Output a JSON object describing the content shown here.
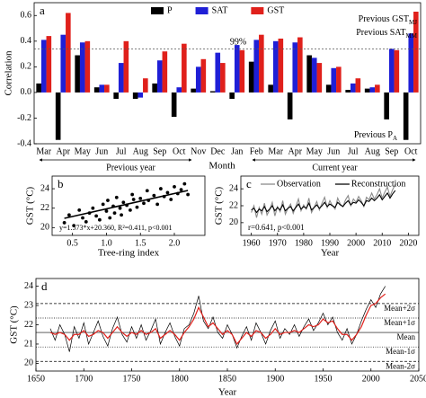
{
  "chart_data": [
    {
      "type": "bar",
      "label": "a",
      "ylabel": "Correlation",
      "xlabel": "Month",
      "categories": [
        "Mar",
        "Apr",
        "May",
        "Jun",
        "Jul",
        "Aug",
        "Sep",
        "Oct",
        "Nov",
        "Dec",
        "Jan",
        "Feb",
        "Mar",
        "Apr",
        "May",
        "Jun",
        "Jul",
        "Aug",
        "Sep",
        "Oct"
      ],
      "groups": [
        "Previous year",
        "Current year"
      ],
      "series": [
        {
          "name": "P",
          "color": "#000000",
          "values": [
            0.07,
            -0.37,
            0.29,
            0.04,
            -0.05,
            -0.05,
            0.07,
            -0.19,
            0.03,
            0.01,
            -0.05,
            0.24,
            0.06,
            -0.21,
            0.29,
            0.06,
            0.02,
            0.03,
            -0.21,
            -0.37
          ]
        },
        {
          "name": "SAT",
          "color": "#1f1fd6",
          "values": [
            0.41,
            0.45,
            0.39,
            0.06,
            0.23,
            -0.04,
            0.25,
            0.04,
            0.2,
            0.31,
            0.37,
            0.41,
            0.4,
            0.39,
            0.27,
            0.19,
            0.07,
            0.04,
            0.34,
            0.46
          ]
        },
        {
          "name": "GST",
          "color": "#e0201b",
          "values": [
            0.44,
            0.62,
            0.4,
            0.06,
            0.4,
            0.11,
            0.32,
            0.38,
            0.26,
            0.23,
            0.33,
            0.45,
            0.42,
            0.43,
            0.23,
            0.2,
            0.11,
            0.06,
            0.33,
            0.63
          ]
        }
      ],
      "ylim": [
        -0.4,
        0.7
      ],
      "yticks": [
        -0.4,
        -0.2,
        {
          "value": 0,
          "label": "0.0"
        },
        0.2,
        0.4,
        0.6
      ],
      "threshold": 0.34,
      "threshold_label": "99%",
      "legend": "top",
      "annotations": [
        {
          "text": "Previous GST",
          "sub": "MJ"
        },
        {
          "text": "Previous SAT",
          "sub": "MM"
        },
        {
          "text": "Previous P",
          "sub": "A"
        }
      ]
    },
    {
      "type": "scatter",
      "label": "b",
      "xlabel": "Tree-ring index",
      "ylabel": "GST (°C)",
      "x": [
        0.38,
        0.45,
        0.52,
        0.6,
        0.65,
        0.7,
        0.75,
        0.8,
        0.85,
        0.9,
        0.95,
        1.0,
        1.02,
        1.05,
        1.1,
        1.12,
        1.15,
        1.2,
        1.22,
        1.25,
        1.3,
        1.35,
        1.38,
        1.4,
        1.45,
        1.5,
        1.55,
        1.6,
        1.62,
        1.7,
        1.75,
        1.8,
        1.85,
        1.9,
        1.95,
        2.0,
        2.05,
        2.1,
        2.15,
        2.2
      ],
      "y": [
        20.5,
        21.3,
        20.2,
        21.8,
        21.0,
        20.6,
        21.5,
        22.0,
        21.2,
        20.8,
        22.4,
        21.7,
        22.8,
        21.0,
        22.2,
        21.5,
        23.1,
        22.0,
        21.3,
        22.6,
        22.3,
        21.8,
        23.4,
        22.9,
        22.1,
        23.0,
        22.5,
        23.8,
        22.8,
        23.3,
        22.4,
        24.0,
        23.2,
        23.6,
        22.9,
        24.2,
        23.5,
        23.9,
        24.5,
        23.4
      ],
      "color": "#000000",
      "xlim": [
        0.2,
        2.45
      ],
      "xticks": [
        0.5,
        {
          "value": 1,
          "label": "1.0"
        },
        1.5,
        {
          "value": 2,
          "label": "2.0"
        }
      ],
      "ylim": [
        19.2,
        25.3
      ],
      "yticks": [
        20,
        22,
        24
      ],
      "fit": {
        "slope": 1.573,
        "intercept": 20.36
      },
      "annotation": "y=1.573*x+20.360, R²=0.411, p<0.001"
    },
    {
      "type": "line",
      "label": "c",
      "xlabel": "Year",
      "ylabel": "GST (°C)",
      "x": [
        1960,
        1961,
        1962,
        1963,
        1964,
        1965,
        1966,
        1967,
        1968,
        1969,
        1970,
        1971,
        1972,
        1973,
        1974,
        1975,
        1976,
        1977,
        1978,
        1979,
        1980,
        1981,
        1982,
        1983,
        1984,
        1985,
        1986,
        1987,
        1988,
        1989,
        1990,
        1991,
        1992,
        1993,
        1994,
        1995,
        1996,
        1997,
        1998,
        1999,
        2000,
        2001,
        2002,
        2003,
        2004,
        2005,
        2006,
        2007,
        2008,
        2009,
        2010,
        2011,
        2012,
        2013,
        2014,
        2015
      ],
      "series": [
        {
          "name": "Observation",
          "color": "#8c8c8c",
          "values": [
            21.2,
            22.0,
            20.6,
            21.8,
            21.0,
            22.3,
            20.9,
            21.5,
            22.4,
            20.8,
            21.9,
            21.3,
            22.6,
            21.0,
            21.7,
            22.2,
            21.1,
            21.9,
            22.8,
            21.4,
            22.1,
            21.6,
            22.9,
            21.2,
            21.8,
            22.5,
            21.5,
            22.3,
            23.0,
            21.8,
            22.6,
            22.0,
            21.6,
            22.9,
            22.2,
            21.9,
            22.7,
            23.2,
            22.0,
            22.8,
            22.4,
            23.1,
            22.6,
            21.9,
            23.0,
            22.7,
            23.5,
            22.8,
            23.3,
            24.0,
            22.9,
            23.6,
            24.2,
            23.1,
            23.9,
            24.5
          ]
        },
        {
          "name": "Reconstruction",
          "color": "#000000",
          "values": [
            21.5,
            21.7,
            21.2,
            21.6,
            21.4,
            21.9,
            21.3,
            21.6,
            22.0,
            21.4,
            21.8,
            21.5,
            22.1,
            21.4,
            21.7,
            21.9,
            21.4,
            21.8,
            22.2,
            21.6,
            21.9,
            21.7,
            22.3,
            21.5,
            21.8,
            22.1,
            21.7,
            22.0,
            22.4,
            21.9,
            22.2,
            22.0,
            21.8,
            22.4,
            22.1,
            21.9,
            22.3,
            22.6,
            22.1,
            22.4,
            22.3,
            22.7,
            22.4,
            22.0,
            22.6,
            22.5,
            22.9,
            22.6,
            22.9,
            23.3,
            22.7,
            23.1,
            23.5,
            22.9,
            23.4,
            23.8
          ]
        }
      ],
      "xlim": [
        1956,
        2024
      ],
      "xticks": [
        1960,
        1970,
        1980,
        1990,
        2000,
        2010,
        2020
      ],
      "ylim": [
        18.5,
        25.5
      ],
      "yticks": [
        20,
        22,
        24
      ],
      "annotation": "r=0.641, p<0.001",
      "legend": "top"
    },
    {
      "type": "line",
      "label": "d",
      "xlabel": "Year",
      "ylabel": "GST (°C)",
      "x": [
        1665,
        1670,
        1675,
        1680,
        1685,
        1690,
        1695,
        1700,
        1705,
        1710,
        1715,
        1720,
        1725,
        1730,
        1735,
        1740,
        1745,
        1750,
        1755,
        1760,
        1765,
        1770,
        1775,
        1780,
        1785,
        1790,
        1795,
        1800,
        1805,
        1810,
        1815,
        1820,
        1825,
        1830,
        1835,
        1840,
        1845,
        1850,
        1855,
        1860,
        1865,
        1870,
        1875,
        1880,
        1885,
        1890,
        1895,
        1900,
        1905,
        1910,
        1915,
        1920,
        1925,
        1930,
        1935,
        1940,
        1945,
        1950,
        1955,
        1960,
        1965,
        1970,
        1975,
        1980,
        1985,
        1990,
        1995,
        2000,
        2005,
        2010,
        2015
      ],
      "series": [
        {
          "color": "#000000",
          "values": [
            21.8,
            21.2,
            22.0,
            21.5,
            20.6,
            21.9,
            21.3,
            22.1,
            21.0,
            21.6,
            22.2,
            21.4,
            20.9,
            21.8,
            22.4,
            21.5,
            21.1,
            21.9,
            21.3,
            22.0,
            21.2,
            21.7,
            22.3,
            21.0,
            21.6,
            22.1,
            21.4,
            20.9,
            21.8,
            22.0,
            22.6,
            23.5,
            22.2,
            21.8,
            22.4,
            21.6,
            21.3,
            22.0,
            21.5,
            20.8,
            21.4,
            21.9,
            21.2,
            22.1,
            21.6,
            21.0,
            21.7,
            22.2,
            21.3,
            21.8,
            21.5,
            22.0,
            21.4,
            21.9,
            22.3,
            21.7,
            22.1,
            22.6,
            22.0,
            22.4,
            21.6,
            21.2,
            21.8,
            21.0,
            21.5,
            22.2,
            22.8,
            23.3,
            22.9,
            23.6,
            24.0
          ]
        },
        {
          "color": "#e0201b",
          "values": [
            21.6,
            21.5,
            21.6,
            21.5,
            21.2,
            21.5,
            21.5,
            21.7,
            21.4,
            21.5,
            21.7,
            21.6,
            21.3,
            21.6,
            21.9,
            21.6,
            21.4,
            21.6,
            21.5,
            21.7,
            21.5,
            21.6,
            21.8,
            21.3,
            21.5,
            21.7,
            21.5,
            21.2,
            21.6,
            21.9,
            22.3,
            22.9,
            22.4,
            21.9,
            22.1,
            21.8,
            21.5,
            21.7,
            21.5,
            21.0,
            21.3,
            21.6,
            21.4,
            21.7,
            21.6,
            21.3,
            21.5,
            21.8,
            21.5,
            21.6,
            21.6,
            21.7,
            21.6,
            21.8,
            22.0,
            21.9,
            22.0,
            22.3,
            22.1,
            22.2,
            21.8,
            21.5,
            21.5,
            21.2,
            21.5,
            21.9,
            22.5,
            23.0,
            23.1,
            23.4,
            23.6
          ]
        }
      ],
      "xlim": [
        1650,
        2050
      ],
      "xticks": [
        1650,
        1700,
        1750,
        1800,
        1850,
        1900,
        1950,
        2000,
        2050
      ],
      "ylim": [
        19.6,
        24.4
      ],
      "yticks": [
        20,
        21,
        22,
        23,
        24
      ],
      "reference_lines": [
        {
          "value": 23.1,
          "label": "Mean+2σ"
        },
        {
          "value": 22.35,
          "label": "Mean+1σ"
        },
        {
          "value": 21.6,
          "label": "Mean"
        },
        {
          "value": 20.85,
          "label": "Mean-1σ"
        },
        {
          "value": 20.1,
          "label": "Mean-2σ"
        }
      ]
    }
  ]
}
